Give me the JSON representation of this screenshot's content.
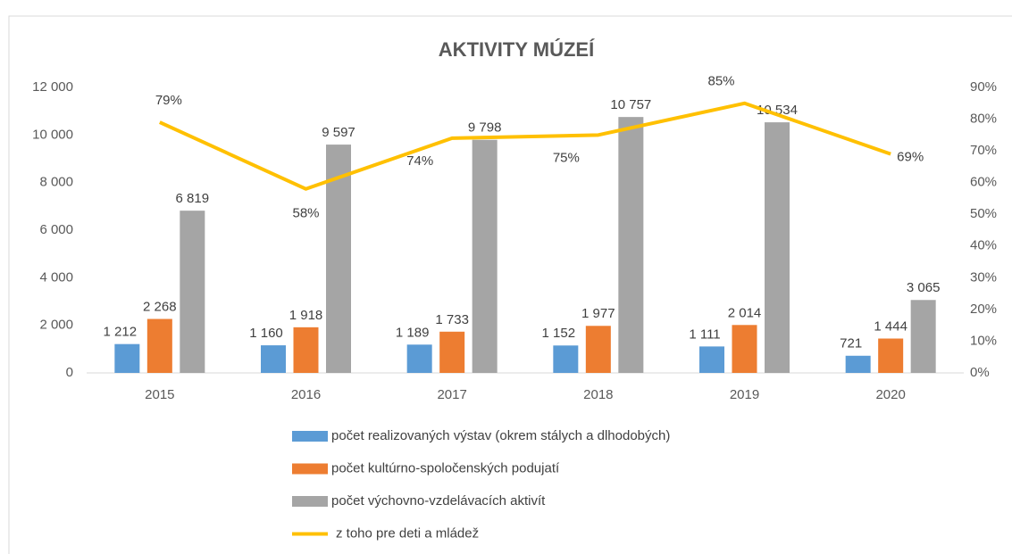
{
  "chart_data": {
    "type": "bar",
    "title": "AKTIVITY MÚZEÍ",
    "categories": [
      "2015",
      "2016",
      "2017",
      "2018",
      "2019",
      "2020"
    ],
    "series": [
      {
        "name": "počet realizovaných výstav (okrem stálych a dlhodobých)",
        "color": "#5b9bd5",
        "values": [
          1212,
          1160,
          1189,
          1152,
          1111,
          721
        ],
        "value_labels": [
          "1 212",
          "1 160",
          "1 189",
          "1 152",
          "1 111",
          "721"
        ]
      },
      {
        "name": "počet kultúrno-spoločenských podujatí",
        "color": "#ed7d31",
        "values": [
          2268,
          1918,
          1733,
          1977,
          2014,
          1444
        ],
        "value_labels": [
          "2 268",
          "1 918",
          "1 733",
          "1 977",
          "2 014",
          "1 444"
        ]
      },
      {
        "name": "počet výchovno-vzdelávacích aktivít",
        "color": "#a5a5a5",
        "values": [
          6819,
          9597,
          9798,
          10757,
          10534,
          3065
        ],
        "value_labels": [
          "6 819",
          "9 597",
          "9 798",
          "10 757",
          "10 534",
          "3 065"
        ]
      },
      {
        "name": "z toho pre deti a mládež",
        "color": "#ffc000",
        "type": "line",
        "axis": "y2",
        "values": [
          79,
          58,
          74,
          75,
          85,
          69
        ],
        "value_labels": [
          "79%",
          "58%",
          "74%",
          "75%",
          "85%",
          "69%"
        ]
      }
    ],
    "ylim": [
      0,
      12000
    ],
    "yticks": [
      0,
      {
        "value": 2000,
        "label": "2 000"
      },
      {
        "value": 4000,
        "label": "4 000"
      },
      {
        "value": 6000,
        "label": "6 000"
      },
      {
        "value": 8000,
        "label": "8 000"
      },
      {
        "value": 10000,
        "label": "10 000"
      },
      {
        "value": 12000,
        "label": "12 000"
      }
    ],
    "y2lim": [
      0,
      90
    ],
    "y2ticks": [
      {
        "value": 0,
        "label": "0%"
      },
      {
        "value": 10,
        "label": "10%"
      },
      {
        "value": 20,
        "label": "20%"
      },
      {
        "value": 30,
        "label": "30%"
      },
      {
        "value": 40,
        "label": "40%"
      },
      {
        "value": 50,
        "label": "50%"
      },
      {
        "value": 60,
        "label": "60%"
      },
      {
        "value": 70,
        "label": "70%"
      },
      {
        "value": 80,
        "label": "80%"
      },
      {
        "value": 90,
        "label": "90%"
      }
    ],
    "grid": false
  }
}
